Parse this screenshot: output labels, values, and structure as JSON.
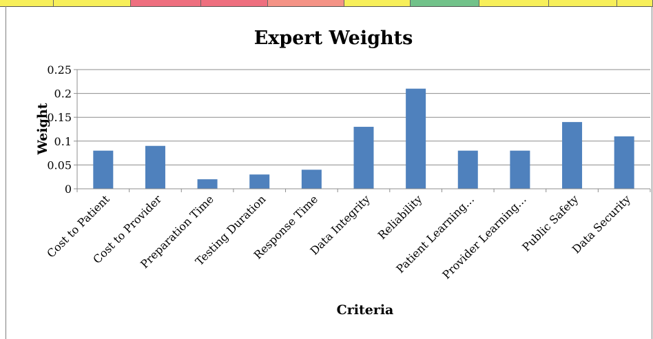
{
  "top_strip": {
    "colors": [
      "#f7ef5a",
      "#f7ef5a",
      "#ee6f7f",
      "#ee6f7f",
      "#f49386",
      "#f7ef5a",
      "#72c28a",
      "#f7ef5a",
      "#f7ef5a",
      "#f7ef5a"
    ]
  },
  "chart_data": {
    "type": "bar",
    "title": "Expert Weights",
    "xlabel": "Criteria",
    "ylabel": "Weight",
    "categories": [
      "Cost to Patient",
      "Cost to Provider",
      "Preparation Time",
      "Testing Duration",
      "Response Time",
      "Data Integrity",
      "Reliability",
      "Patient Learning…",
      "Provider Learning…",
      "Public Safety",
      "Data Security"
    ],
    "values": [
      0.08,
      0.09,
      0.02,
      0.03,
      0.04,
      0.13,
      0.21,
      0.08,
      0.08,
      0.14,
      0.11
    ],
    "ylim": [
      0,
      0.25
    ],
    "yticks": [
      "0",
      "0.05",
      "0.1",
      "0.15",
      "0.2",
      "0.25"
    ],
    "grid": true,
    "legend": "none",
    "bar_color": "#4f81bd"
  }
}
